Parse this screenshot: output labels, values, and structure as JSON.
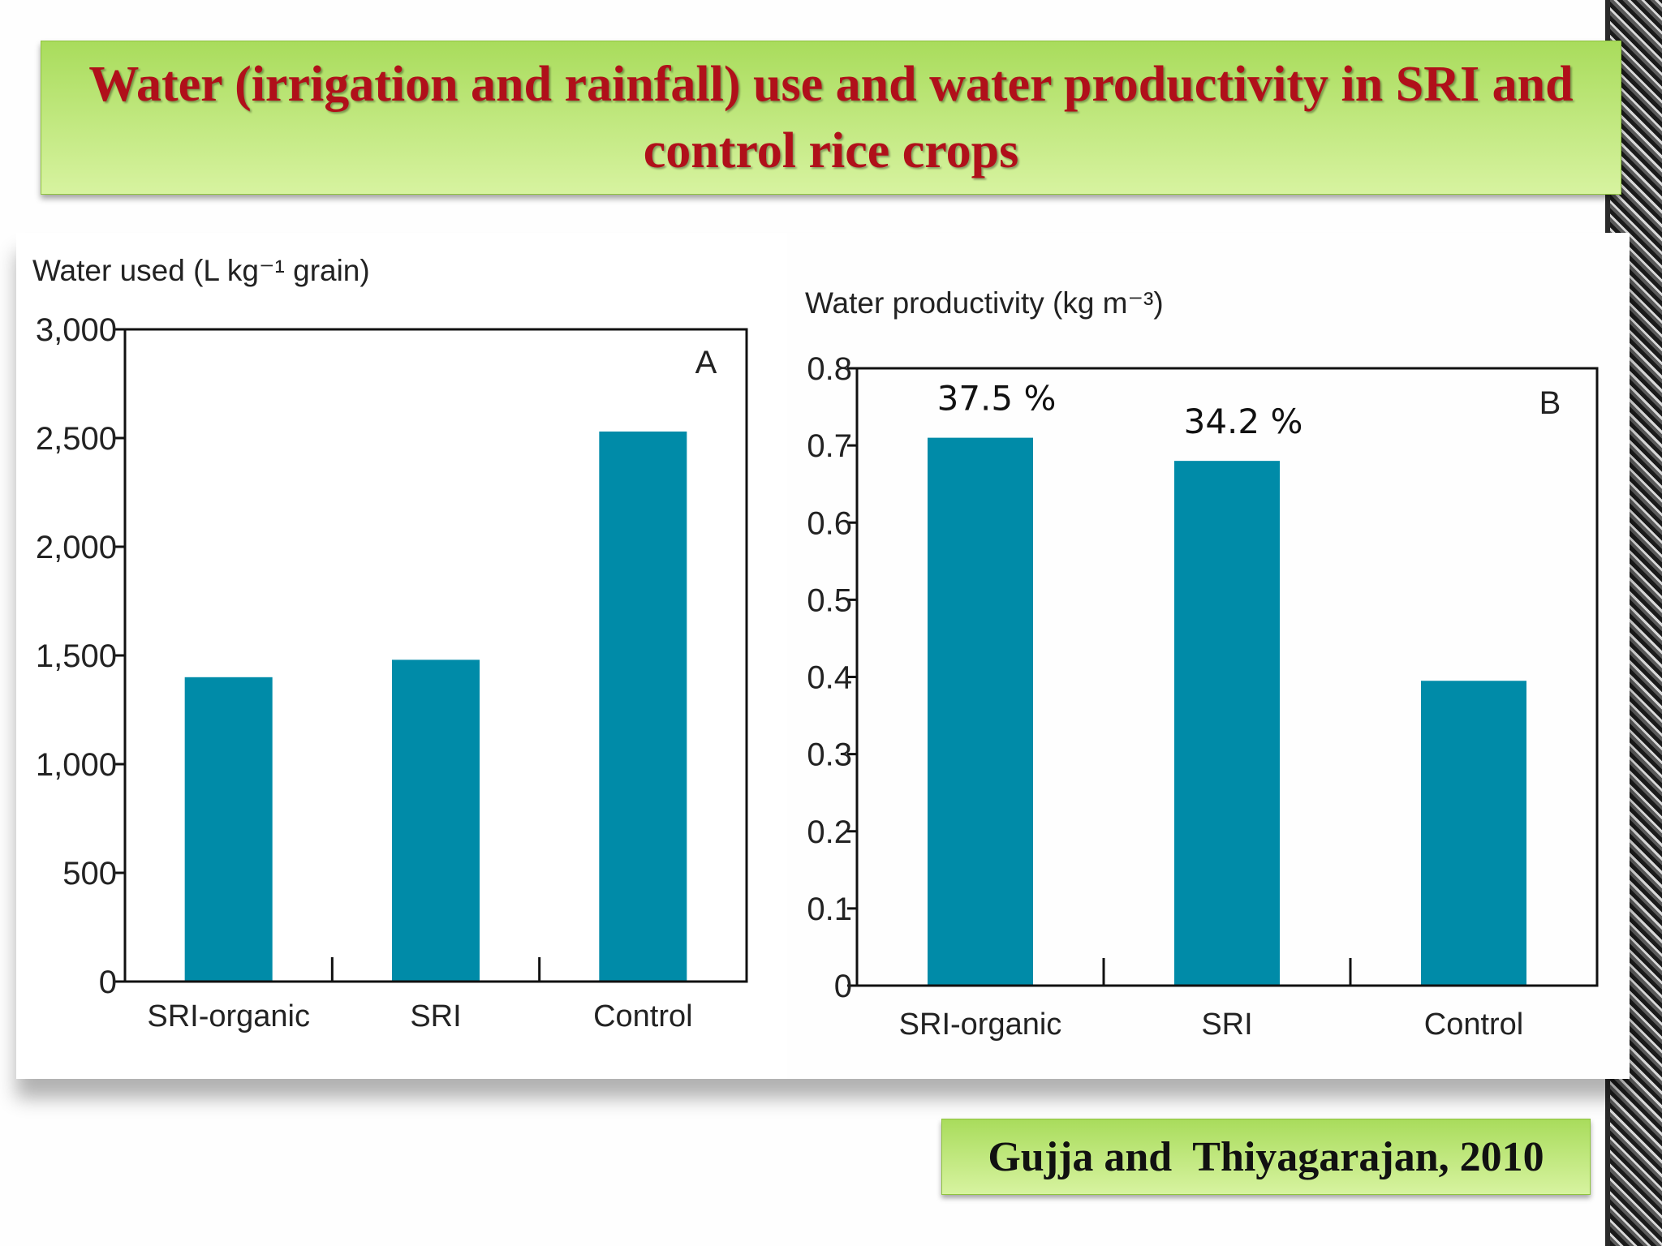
{
  "slide": {
    "title": "Water (irrigation and rainfall) use and water productivity in SRI and control rice crops",
    "citation": "Gujja and  Thiyagarajan, 2010"
  },
  "colors": {
    "bar": "#008ba8",
    "title_text": "#b0101a",
    "box_green": "#b5e26e"
  },
  "chart_data": [
    {
      "type": "bar",
      "panel": "A",
      "ylabel": "Water used (L kg⁻¹ grain)",
      "categories": [
        "SRI-organic",
        "SRI",
        "Control"
      ],
      "values": [
        1400,
        1480,
        2530
      ],
      "ylim": [
        0,
        3000
      ],
      "yticks": [
        0,
        500,
        1000,
        1500,
        2000,
        2500,
        3000
      ],
      "ytick_labels": [
        "0",
        "500",
        "1,000",
        "1,500",
        "2,000",
        "2,500",
        "3,000"
      ],
      "annotations": []
    },
    {
      "type": "bar",
      "panel": "B",
      "ylabel": "Water productivity (kg m⁻³)",
      "categories": [
        "SRI-organic",
        "SRI",
        "Control"
      ],
      "values": [
        0.71,
        0.68,
        0.395
      ],
      "ylim": [
        0,
        0.8
      ],
      "yticks": [
        0,
        0.1,
        0.2,
        0.3,
        0.4,
        0.5,
        0.6,
        0.7,
        0.8
      ],
      "ytick_labels": [
        "0",
        "0.1",
        "0.2",
        "0.3",
        "0.4",
        "0.5",
        "0.6",
        "0.7",
        "0.8"
      ],
      "annotations": [
        "37.5 %",
        "34.2 %",
        ""
      ]
    }
  ]
}
